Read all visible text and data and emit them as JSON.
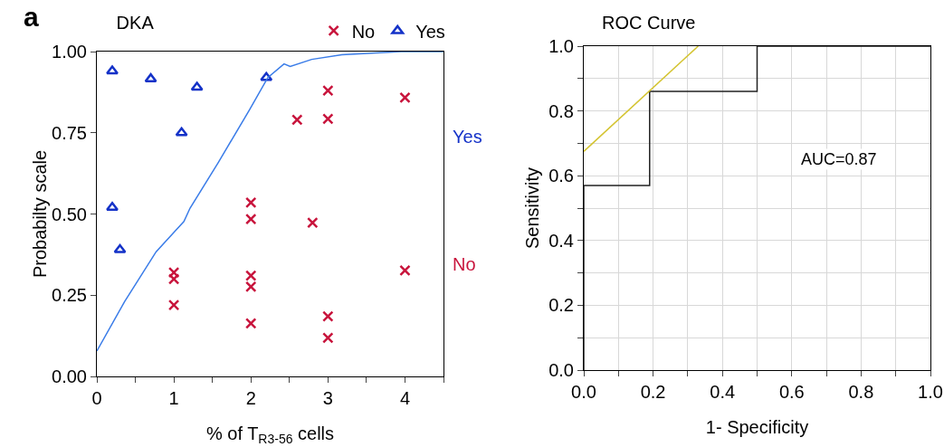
{
  "chart_data": [
    {
      "type": "scatter",
      "title": "DKA",
      "xlabel": "% of T$_{R3-56}$ cells",
      "ylabel": "Probabilty scale",
      "annotations": [
        "a",
        "Yes",
        "No"
      ],
      "legend": "top right",
      "grid": false,
      "xlim": [
        0,
        4.5
      ],
      "xticks": [
        0,
        {
          "value": 0.5,
          "label": null
        },
        1,
        {
          "value": 1.5,
          "label": null
        },
        2,
        {
          "value": 2.5,
          "label": null
        },
        3,
        {
          "value": 3.5,
          "label": null
        },
        4,
        {
          "value": 4.5,
          "label": null
        }
      ],
      "ylim": [
        0,
        1
      ],
      "yticks": [
        "0.00",
        0.25,
        "0.50",
        0.75,
        "1.00"
      ],
      "series": [
        {
          "name": "No",
          "marker": "cross",
          "color": "#c8143c",
          "x": [
            1,
            1,
            1,
            2,
            2,
            2,
            2,
            2,
            2.6,
            2.8,
            3,
            3,
            3,
            3,
            4,
            4
          ],
          "values": [
            0.32,
            0.3,
            0.22,
            0.535,
            0.484,
            0.31,
            0.276,
            0.163,
            0.79,
            0.473,
            0.88,
            0.793,
            0.185,
            0.119,
            0.858,
            0.326
          ]
        },
        {
          "name": "Yes",
          "marker": "triangle",
          "color": "#1432c8",
          "x": [
            0.2,
            0.7,
            1.3,
            1.1,
            2.2,
            0.2,
            0.3
          ],
          "values": [
            0.94,
            0.916,
            0.89,
            0.75,
            0.92,
            0.52,
            0.39
          ]
        },
        {
          "type": "line",
          "marker": "none",
          "color": "#3a7ce8",
          "x": [
            0,
            0.36,
            0.77,
            1.13,
            1.21,
            1.58,
            1.98,
            2.22,
            2.43,
            2.51,
            2.79,
            3.18,
            3.95,
            4.5
          ],
          "values": [
            0.078,
            0.23,
            0.384,
            0.477,
            0.518,
            0.66,
            0.82,
            0.92,
            0.962,
            0.954,
            0.976,
            0.99,
            1,
            1
          ]
        }
      ]
    },
    {
      "type": "line",
      "title": "ROC Curve",
      "xlabel": "1- Specificity",
      "ylabel": "Sensitivity",
      "annotations": [
        "AUC=0.87"
      ],
      "grid": true,
      "xlim": [
        0,
        1
      ],
      "xticks": [
        "0.0",
        {
          "value": 0.1,
          "label": null
        },
        0.2,
        {
          "value": 0.3,
          "label": null
        },
        0.4,
        {
          "value": 0.5,
          "label": null
        },
        0.6,
        {
          "value": 0.7,
          "label": null
        },
        0.8,
        {
          "value": 0.9,
          "label": null
        },
        "1.0"
      ],
      "ylim": [
        0,
        1
      ],
      "yticks": [
        "0.0",
        {
          "value": 0.1,
          "label": null
        },
        0.2,
        {
          "value": 0.3,
          "label": null
        },
        0.4,
        {
          "value": 0.5,
          "label": null
        },
        0.6,
        {
          "value": 0.7,
          "label": null
        },
        0.8,
        {
          "value": 0.9,
          "label": null
        },
        "1.0"
      ],
      "series": [
        {
          "marker": "none",
          "color": "#222222",
          "x": [
            0,
            0,
            0.19,
            0.19,
            0.5,
            0.5,
            1
          ],
          "values": [
            0,
            0.57,
            0.57,
            0.86,
            0.86,
            1,
            1
          ]
        },
        {
          "marker": "none",
          "color": "#d4c431",
          "x": [
            0,
            0.33
          ],
          "values": [
            0.675,
            1
          ]
        }
      ]
    }
  ]
}
